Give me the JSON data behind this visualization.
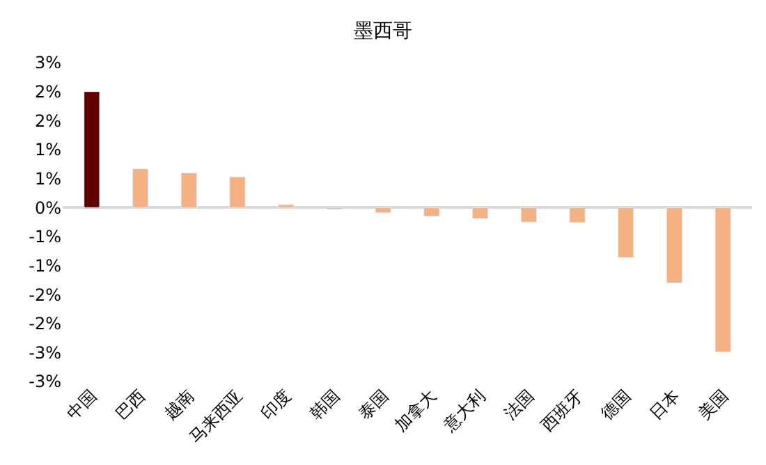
{
  "chart_data": {
    "type": "bar",
    "title": "墨西哥",
    "categories": [
      "中国",
      "巴西",
      "越南",
      "马来西亚",
      "印度",
      "韩国",
      "泰国",
      "加拿大",
      "意大利",
      "法国",
      "西班牙",
      "德国",
      "日本",
      "美国"
    ],
    "values": [
      2.0,
      0.67,
      0.6,
      0.53,
      0.05,
      -0.03,
      -0.09,
      -0.15,
      -0.19,
      -0.25,
      -0.26,
      -0.86,
      -1.3,
      -2.49
    ],
    "colors": [
      "#600000",
      "#f4b183",
      "#f4b183",
      "#f4b183",
      "#f4b183",
      "#f4b183",
      "#f4b183",
      "#f4b183",
      "#f4b183",
      "#f4b183",
      "#f4b183",
      "#f4b183",
      "#f4b183",
      "#f4b183"
    ],
    "ylim": [
      -3.0,
      2.5
    ],
    "yticks": [
      {
        "value": 2.5,
        "label": "3%"
      },
      {
        "value": 2.0,
        "label": "2%"
      },
      {
        "value": 1.5,
        "label": "2%"
      },
      {
        "value": 1.0,
        "label": "1%"
      },
      {
        "value": 0.5,
        "label": "1%"
      },
      {
        "value": 0,
        "label": "0%"
      },
      {
        "value": -0.5,
        "label": "-1%"
      },
      {
        "value": -1.0,
        "label": "-1%"
      },
      {
        "value": -1.5,
        "label": "-2%"
      },
      {
        "value": -2.0,
        "label": "-2%"
      },
      {
        "value": -2.5,
        "label": "-3%"
      },
      {
        "value": -3.0,
        "label": "-3%"
      }
    ]
  }
}
